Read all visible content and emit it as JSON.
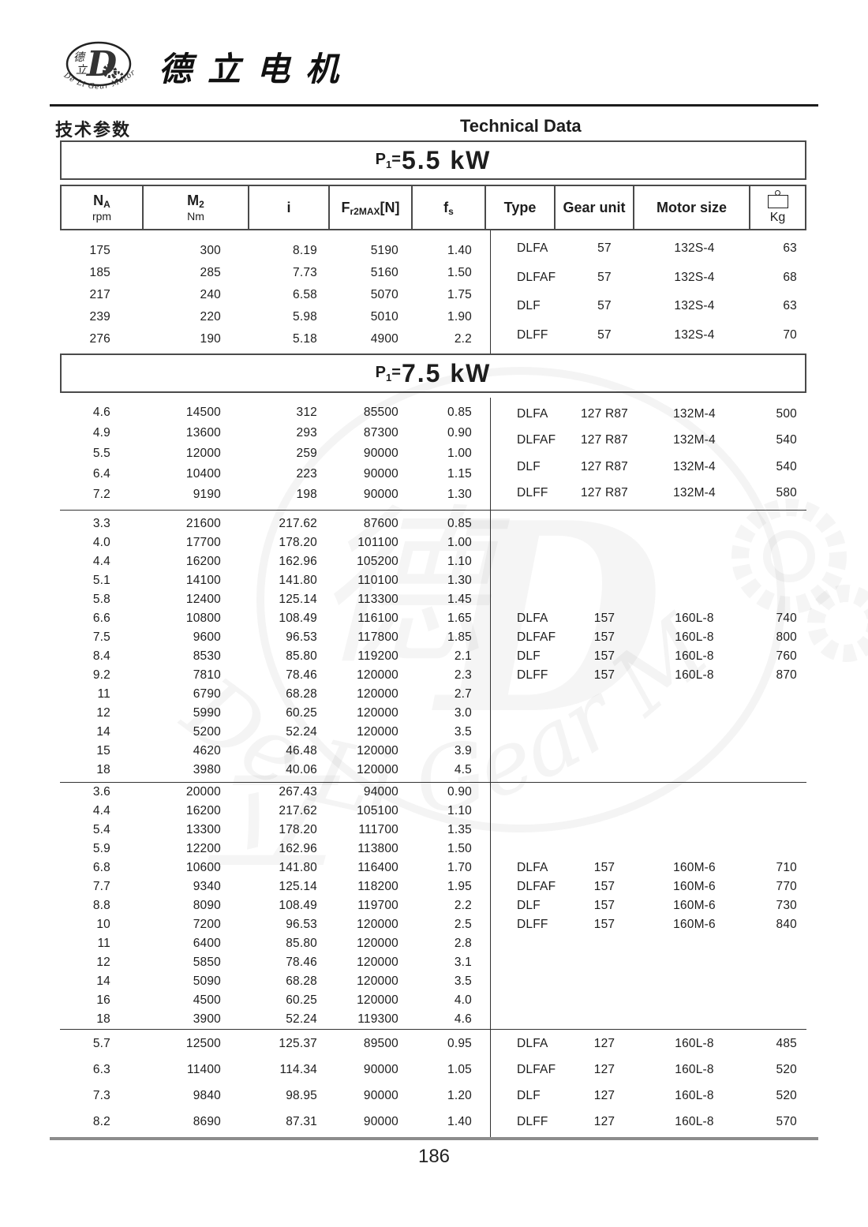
{
  "header": {
    "brand": "德立电机",
    "section_cn": "技术参数",
    "section_en": "Technical Data",
    "logo": {
      "cn_top": "德",
      "cn_bottom": "立",
      "d_letter": "D",
      "arc_text": "De Li Gear Motor"
    }
  },
  "columns": [
    {
      "id": "na",
      "main": "N",
      "sub": "A",
      "unit": "rpm"
    },
    {
      "id": "m2",
      "main": "M",
      "sub": "2",
      "unit": "Nm"
    },
    {
      "id": "i",
      "main": "i"
    },
    {
      "id": "fr2max",
      "main": "F",
      "sub": "r2MAX",
      "after": "[N]"
    },
    {
      "id": "fs",
      "main": "f",
      "sub": "s"
    },
    {
      "id": "type",
      "main": "Type"
    },
    {
      "id": "gear-unit",
      "main": "Gear unit"
    },
    {
      "id": "motor-size",
      "main": "Motor size"
    },
    {
      "id": "kg",
      "icon": "weight-icon",
      "unit": "Kg"
    }
  ],
  "sections": [
    {
      "title": {
        "p": "P",
        "sub": "1",
        "eq": "=",
        "value": "5.5 kW"
      },
      "groups": [
        {
          "rows": [
            [
              "175",
              "300",
              "8.19",
              "5190",
              "1.40"
            ],
            [
              "185",
              "285",
              "7.73",
              "5160",
              "1.50"
            ],
            [
              "217",
              "240",
              "6.58",
              "5070",
              "1.75"
            ],
            [
              "239",
              "220",
              "5.98",
              "5010",
              "1.90"
            ],
            [
              "276",
              "190",
              "5.18",
              "4900",
              "2.2"
            ]
          ],
          "motors": [
            [
              "DLFA",
              "57",
              "132S-4",
              "63"
            ],
            [
              "DLFAF",
              "57",
              "132S-4",
              "68"
            ],
            [
              "DLF",
              "57",
              "132S-4",
              "63"
            ],
            [
              "DLFF",
              "57",
              "132S-4",
              "70"
            ]
          ]
        }
      ]
    },
    {
      "title": {
        "p": "P",
        "sub": "1",
        "eq": "=",
        "value": "7.5 kW"
      },
      "groups": [
        {
          "rows": [
            [
              "4.6",
              "14500",
              "312",
              "85500",
              "0.85"
            ],
            [
              "4.9",
              "13600",
              "293",
              "87300",
              "0.90"
            ],
            [
              "5.5",
              "12000",
              "259",
              "90000",
              "1.00"
            ],
            [
              "6.4",
              "10400",
              "223",
              "90000",
              "1.15"
            ],
            [
              "7.2",
              "9190",
              "198",
              "90000",
              "1.30"
            ]
          ],
          "motors": [
            [
              "DLFA",
              "127 R87",
              "132M-4",
              "500"
            ],
            [
              "DLFAF",
              "127 R87",
              "132M-4",
              "540"
            ],
            [
              "DLF",
              "127 R87",
              "132M-4",
              "540"
            ],
            [
              "DLFF",
              "127 R87",
              "132M-4",
              "580"
            ]
          ]
        },
        {
          "rows": [
            [
              "3.3",
              "21600",
              "217.62",
              "87600",
              "0.85"
            ],
            [
              "4.0",
              "17700",
              "178.20",
              "101100",
              "1.00"
            ],
            [
              "4.4",
              "16200",
              "162.96",
              "105200",
              "1.10"
            ],
            [
              "5.1",
              "14100",
              "141.80",
              "110100",
              "1.30"
            ],
            [
              "5.8",
              "12400",
              "125.14",
              "113300",
              "1.45"
            ],
            [
              "6.6",
              "10800",
              "108.49",
              "116100",
              "1.65"
            ],
            [
              "7.5",
              "9600",
              "96.53",
              "117800",
              "1.85"
            ],
            [
              "8.4",
              "8530",
              "85.80",
              "119200",
              "2.1"
            ],
            [
              "9.2",
              "7810",
              "78.46",
              "120000",
              "2.3"
            ],
            [
              "11",
              "6790",
              "68.28",
              "120000",
              "2.7"
            ],
            [
              "12",
              "5990",
              "60.25",
              "120000",
              "3.0"
            ],
            [
              "14",
              "5200",
              "52.24",
              "120000",
              "3.5"
            ],
            [
              "15",
              "4620",
              "46.48",
              "120000",
              "3.9"
            ],
            [
              "18",
              "3980",
              "40.06",
              "120000",
              "4.5"
            ]
          ],
          "motors": [
            [
              "DLFA",
              "157",
              "160L-8",
              "740"
            ],
            [
              "DLFAF",
              "157",
              "160L-8",
              "800"
            ],
            [
              "DLF",
              "157",
              "160L-8",
              "760"
            ],
            [
              "DLFF",
              "157",
              "160L-8",
              "870"
            ]
          ]
        },
        {
          "rows": [
            [
              "3.6",
              "20000",
              "267.43",
              "94000",
              "0.90"
            ],
            [
              "4.4",
              "16200",
              "217.62",
              "105100",
              "1.10"
            ],
            [
              "5.4",
              "13300",
              "178.20",
              "111700",
              "1.35"
            ],
            [
              "5.9",
              "12200",
              "162.96",
              "113800",
              "1.50"
            ],
            [
              "6.8",
              "10600",
              "141.80",
              "116400",
              "1.70"
            ],
            [
              "7.7",
              "9340",
              "125.14",
              "118200",
              "1.95"
            ],
            [
              "8.8",
              "8090",
              "108.49",
              "119700",
              "2.2"
            ],
            [
              "10",
              "7200",
              "96.53",
              "120000",
              "2.5"
            ],
            [
              "11",
              "6400",
              "85.80",
              "120000",
              "2.8"
            ],
            [
              "12",
              "5850",
              "78.46",
              "120000",
              "3.1"
            ],
            [
              "14",
              "5090",
              "68.28",
              "120000",
              "3.5"
            ],
            [
              "16",
              "4500",
              "60.25",
              "120000",
              "4.0"
            ],
            [
              "18",
              "3900",
              "52.24",
              "119300",
              "4.6"
            ]
          ],
          "motors": [
            [
              "DLFA",
              "157",
              "160M-6",
              "710"
            ],
            [
              "DLFAF",
              "157",
              "160M-6",
              "770"
            ],
            [
              "DLF",
              "157",
              "160M-6",
              "730"
            ],
            [
              "DLFF",
              "157",
              "160M-6",
              "840"
            ]
          ]
        },
        {
          "rows": [
            [
              "5.7",
              "12500",
              "125.37",
              "89500",
              "0.95"
            ],
            [
              "6.3",
              "11400",
              "114.34",
              "90000",
              "1.05"
            ],
            [
              "7.3",
              "9840",
              "98.95",
              "90000",
              "1.20"
            ],
            [
              "8.2",
              "8690",
              "87.31",
              "90000",
              "1.40"
            ]
          ],
          "motors": [
            [
              "DLFA",
              "127",
              "160L-8",
              "485"
            ],
            [
              "DLFAF",
              "127",
              "160L-8",
              "520"
            ],
            [
              "DLF",
              "127",
              "160L-8",
              "520"
            ],
            [
              "DLFF",
              "127",
              "160L-8",
              "570"
            ]
          ]
        }
      ]
    }
  ],
  "watermark": {
    "cn1": "德",
    "cn2": "立",
    "d_letter": "D",
    "script": "De Li Gear Motor"
  },
  "footer": {
    "page_number": "186"
  }
}
